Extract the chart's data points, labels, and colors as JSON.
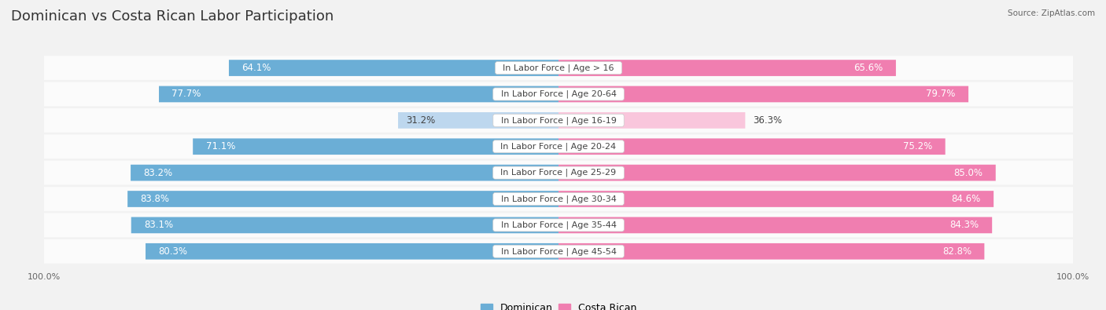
{
  "title": "Dominican vs Costa Rican Labor Participation",
  "source": "Source: ZipAtlas.com",
  "categories": [
    "In Labor Force | Age > 16",
    "In Labor Force | Age 20-64",
    "In Labor Force | Age 16-19",
    "In Labor Force | Age 20-24",
    "In Labor Force | Age 25-29",
    "In Labor Force | Age 30-34",
    "In Labor Force | Age 35-44",
    "In Labor Force | Age 45-54"
  ],
  "dominican_values": [
    64.1,
    77.7,
    31.2,
    71.1,
    83.2,
    83.8,
    83.1,
    80.3
  ],
  "costarican_values": [
    65.6,
    79.7,
    36.3,
    75.2,
    85.0,
    84.6,
    84.3,
    82.8
  ],
  "dominican_color_full": "#6baed6",
  "dominican_color_light": "#bdd7ee",
  "costarican_color_full": "#f07eb0",
  "costarican_color_light": "#f9c6dc",
  "threshold": 50,
  "bar_height": 0.62,
  "background_color": "#f2f2f2",
  "center_label_color": "#444444",
  "value_font_size": 8.5,
  "label_font_size": 8.0,
  "title_font_size": 13,
  "legend_font_size": 9,
  "axis_label_font_size": 8,
  "max_val": 100
}
